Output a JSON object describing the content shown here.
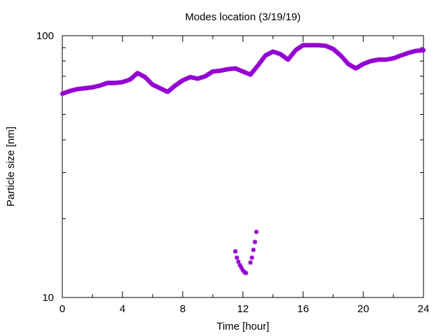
{
  "chart_data": {
    "type": "scatter",
    "title": "Modes location (3/19/19)",
    "xlabel": "Time [hour]",
    "ylabel": "Particle size [nm]",
    "xlim": [
      0,
      24
    ],
    "ylim": [
      10,
      100
    ],
    "yscale": "log",
    "xticks": [
      0,
      4,
      8,
      12,
      16,
      20,
      24
    ],
    "xtick_labels": [
      "0",
      "4",
      "8",
      "12",
      "16",
      "20",
      "24"
    ],
    "yticks": [
      10,
      100
    ],
    "ytick_labels": [
      "10",
      "100"
    ],
    "grid": false,
    "legend": "none",
    "marker_color": "#9400d3",
    "series": [
      {
        "x": [
          0,
          0.5,
          1,
          1.5,
          2,
          2.5,
          3,
          3.5,
          4,
          4.5,
          5,
          5.5,
          6,
          6.5,
          7,
          7.5,
          8,
          8.5,
          9,
          9.5,
          10,
          10.5,
          11,
          11.5,
          12,
          12.5,
          13,
          13.5,
          14,
          14.5,
          15,
          15.5,
          16,
          16.5,
          17,
          17.5,
          18,
          18.5,
          19,
          19.5,
          20,
          20.5,
          21,
          21.5,
          22,
          22.5,
          23,
          23.5,
          24
        ],
        "y": [
          60,
          61.5,
          62.5,
          63,
          63.5,
          64.5,
          66,
          66,
          66.5,
          68,
          72,
          69.5,
          65,
          63,
          61,
          64.5,
          67.5,
          69.5,
          68.5,
          70,
          73,
          73.5,
          74.5,
          75,
          73,
          71,
          77,
          84,
          87,
          85,
          81,
          88,
          92,
          92,
          92,
          91.5,
          89,
          84,
          78,
          75,
          78,
          80,
          81,
          81,
          82,
          84,
          86,
          87.5,
          88
        ]
      },
      {
        "x": [
          11.5,
          11.6,
          11.7,
          11.8,
          11.9,
          12.0,
          12.1,
          12.2,
          12.5,
          12.6,
          12.7,
          12.8,
          12.9
        ],
        "y": [
          15,
          14.2,
          13.7,
          13.3,
          13.0,
          12.7,
          12.5,
          12.4,
          13.6,
          14.2,
          15.2,
          16.3,
          17.8
        ]
      }
    ]
  }
}
